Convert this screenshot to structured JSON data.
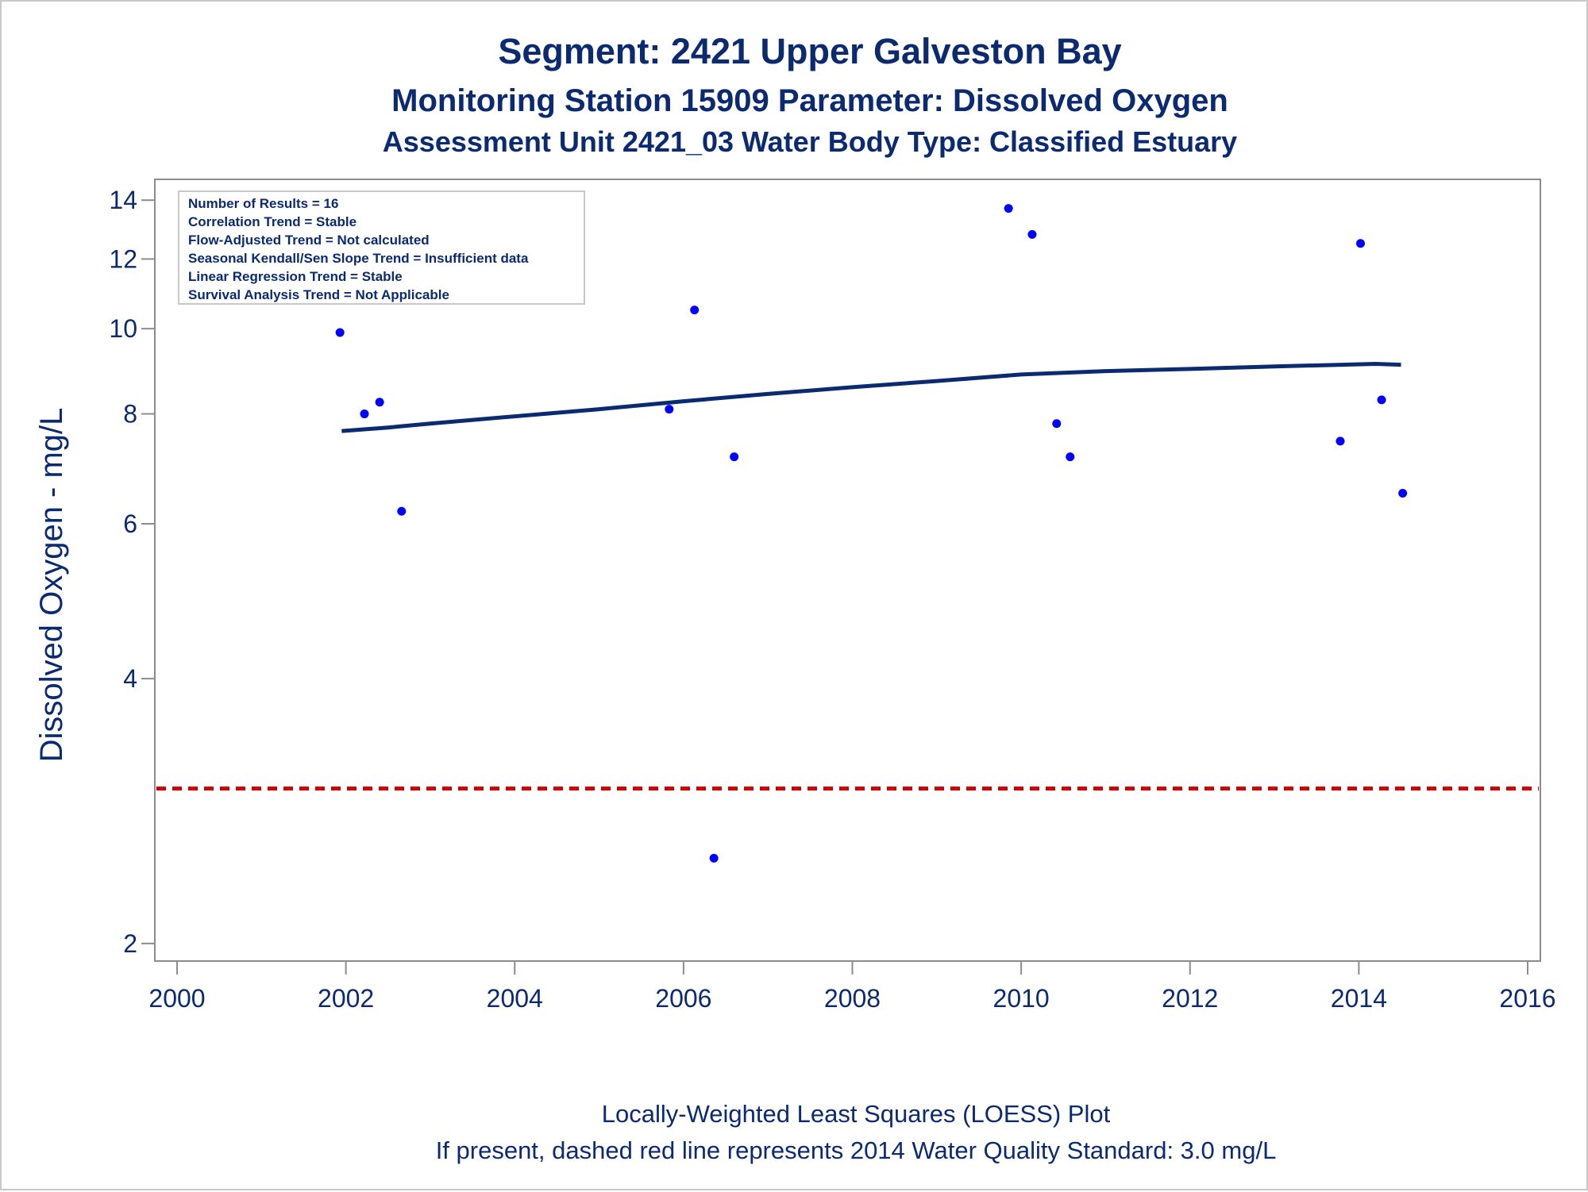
{
  "titles": {
    "line1": "Segment: 2421  Upper Galveston Bay",
    "line2": "Monitoring Station 15909 Parameter: Dissolved Oxygen",
    "line3": "Assessment Unit 2421_03   Water Body Type: Classified Estuary"
  },
  "stats_box": {
    "lines": [
      "Number of Results = 16",
      "Correlation Trend = Stable",
      "Flow-Adjusted Trend = Not calculated",
      "Seasonal Kendall/Sen Slope Trend = Insufficient data",
      "Linear Regression Trend = Stable",
      "Survival Analysis Trend = Not Applicable"
    ]
  },
  "footnotes": {
    "line1": "Locally-Weighted Least Squares (LOESS) Plot",
    "line2": "If present, dashed red line represents 2014 Water Quality Standard: 3.0 mg/L"
  },
  "colors": {
    "text": "#0b2a6f",
    "points": "#0000ff",
    "loess": "#0b2a6f",
    "standard_line": "#cc0000",
    "axis": "#8c8c8c"
  },
  "chart_data": {
    "type": "scatter",
    "ylabel": "Dissolved Oxygen - mg/L",
    "xlabel": "",
    "y_scale": "log",
    "xlim": [
      2000,
      2016
    ],
    "ylim": [
      1.95,
      14.3
    ],
    "x_ticks": [
      "2000",
      "2002",
      "2004",
      "2006",
      "2008",
      "2010",
      "2012",
      "2014",
      "2016"
    ],
    "y_ticks": [
      "2",
      "4",
      "6",
      "8",
      "10",
      "12",
      "14"
    ],
    "points": [
      {
        "x": 2001.93,
        "y": 9.9
      },
      {
        "x": 2002.22,
        "y": 8.0
      },
      {
        "x": 2002.4,
        "y": 8.25
      },
      {
        "x": 2002.66,
        "y": 6.2
      },
      {
        "x": 2005.83,
        "y": 8.1
      },
      {
        "x": 2006.13,
        "y": 10.5
      },
      {
        "x": 2006.36,
        "y": 2.5
      },
      {
        "x": 2006.6,
        "y": 7.15
      },
      {
        "x": 2009.85,
        "y": 13.7
      },
      {
        "x": 2010.13,
        "y": 12.8
      },
      {
        "x": 2010.42,
        "y": 7.8
      },
      {
        "x": 2010.58,
        "y": 7.15
      },
      {
        "x": 2013.78,
        "y": 7.45
      },
      {
        "x": 2014.02,
        "y": 12.5
      },
      {
        "x": 2014.27,
        "y": 8.3
      },
      {
        "x": 2014.52,
        "y": 6.5
      }
    ],
    "loess": {
      "name": "",
      "x": [
        2001.95,
        2002.5,
        2003.0,
        2004.0,
        2005.0,
        2006.0,
        2007.0,
        2008.0,
        2009.0,
        2010.0,
        2011.0,
        2012.0,
        2013.0,
        2013.8,
        2014.2,
        2014.5
      ],
      "y": [
        7.65,
        7.72,
        7.8,
        7.95,
        8.1,
        8.27,
        8.43,
        8.58,
        8.72,
        8.87,
        8.95,
        9.0,
        9.06,
        9.1,
        9.12,
        9.1
      ]
    },
    "standard": {
      "y": 3.0,
      "style": "dashed"
    },
    "grid": false
  }
}
